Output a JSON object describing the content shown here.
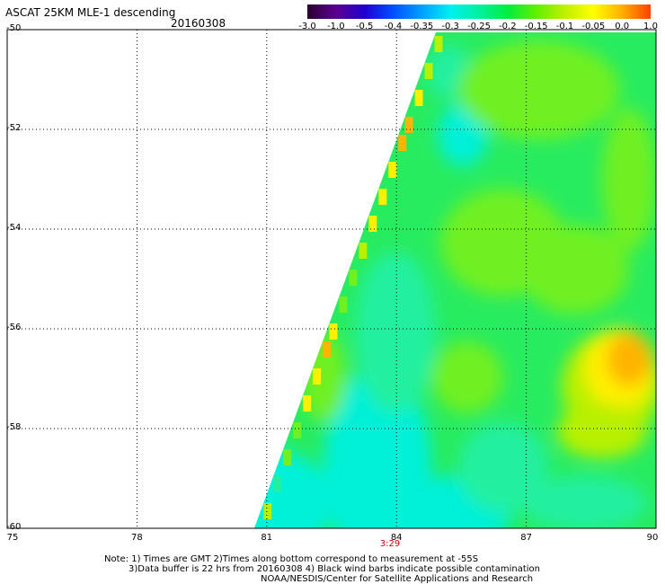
{
  "header": {
    "title": "ASCAT 25KM MLE-1 descending",
    "date": "20160308"
  },
  "colorbar": {
    "labels": [
      "-3.0",
      "-1.0",
      "-0.5",
      "-0.4",
      "-0.35",
      "-0.3",
      "-0.25",
      "-0.2",
      "-0.15",
      "-0.1",
      "-0.05",
      "0.0",
      "1.0"
    ],
    "colors": [
      "#2a0030",
      "#5a0090",
      "#2000d0",
      "#0050ff",
      "#00a0ff",
      "#00f0f0",
      "#00f0a0",
      "#00ee40",
      "#60f000",
      "#c0f000",
      "#ffff00",
      "#ffb000",
      "#ff4000"
    ]
  },
  "map": {
    "lat_labels": [
      "-50",
      "-52",
      "-54",
      "-56",
      "-58",
      "-60"
    ],
    "lon_labels": [
      "75",
      "78",
      "81",
      "84",
      "87",
      "90"
    ],
    "time_label": "3:29",
    "lat_range": [
      -60,
      -50
    ],
    "lon_range": [
      75,
      90
    ],
    "swath_colors": {
      "cyan": "#00f0d8",
      "aqua_green": "#20f0a0",
      "green": "#28ec60",
      "light_green": "#70f020",
      "yellow_green": "#b8f000",
      "yellow": "#fff000",
      "orange": "#ffb400"
    }
  },
  "notes": {
    "line1": "Note: 1) Times are GMT 2)Times along bottom correspond to measurement at -55S",
    "line2": "3)Data buffer is 22 hrs from 20160308 4) Black wind barbs indicate possible contamination",
    "line3": "NOAA/NESDIS/Center for Satellite Applications and Research"
  }
}
